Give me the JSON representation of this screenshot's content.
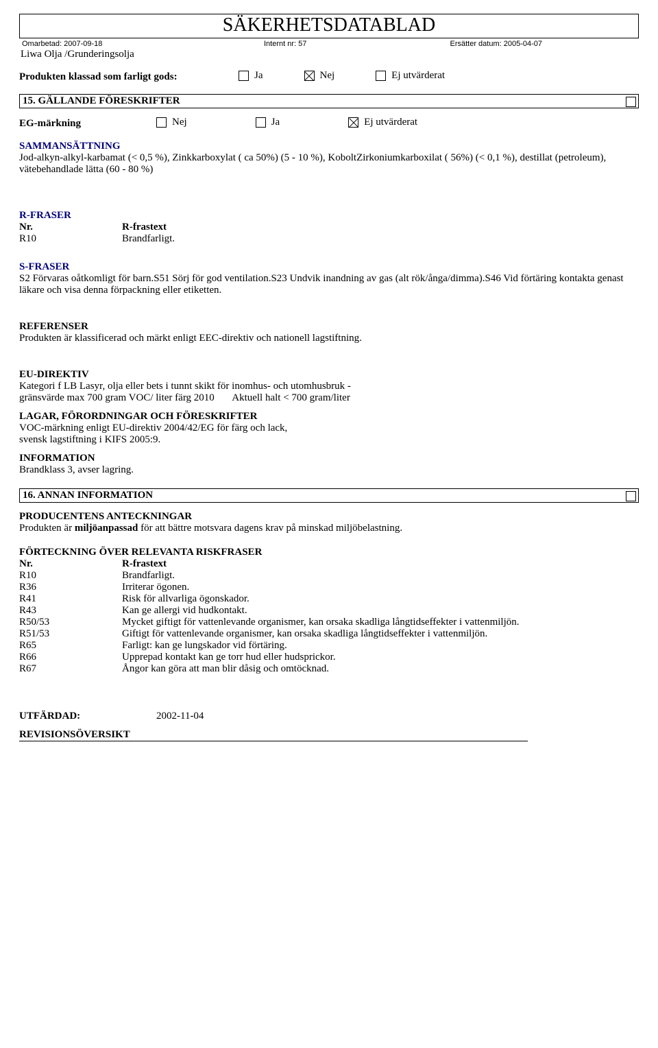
{
  "doc_title": "SÄKERHETSDATABLAD",
  "meta": {
    "left": "Omarbetad: 2007-09-18",
    "center": "Internt nr: 57",
    "right": "Ersätter datum: 2005-04-07"
  },
  "subtitle": "Liwa Olja /Grunderingsolja",
  "gods": {
    "label": "Produkten klassad som farligt gods:",
    "opts": [
      {
        "label": "Ja",
        "checked": false
      },
      {
        "label": "Nej",
        "checked": true
      },
      {
        "label": "Ej utvärderat",
        "checked": false
      }
    ]
  },
  "sec15": {
    "title": "15. GÄLLANDE FÖRESKRIFTER",
    "eg": {
      "label": "EG-märkning",
      "opts": [
        {
          "label": "Nej",
          "checked": false
        },
        {
          "label": "Ja",
          "checked": false
        },
        {
          "label": "Ej utvärderat",
          "checked": true
        }
      ]
    },
    "samman_h": "SAMMANSÄTTNING",
    "samman_txt": "Jod-alkyn-alkyl-karbamat (< 0,5 %), Zinkkarboxylat ( ca 50%) (5 - 10 %), KoboltZirkoniumkarboxilat ( 56%) (< 0,1 %), destillat (petroleum), vätebehandlade lätta (60 - 80 %)",
    "rfraser_h": "R-FRASER",
    "rfraser_cols": {
      "nr": "Nr.",
      "txt": "R-frastext"
    },
    "rfraser_row": {
      "nr": "R10",
      "txt": "Brandfarligt."
    },
    "sfraser_h": "S-FRASER",
    "sfraser_txt": "S2 Förvaras oåtkomligt för barn.S51 Sörj för god ventilation.S23 Undvik inandning av gas (alt rök/ånga/dimma).S46 Vid förtäring kontakta genast läkare och visa denna förpackning eller etiketten.",
    "ref_h": "REFERENSER",
    "ref_txt": "Produkten är klassificerad och märkt enligt EEC-direktiv och nationell lagstiftning.",
    "eu_h": "EU-DIREKTIV",
    "eu_l1": "Kategori f LB  Lasyr, olja eller bets i tunnt skikt för inomhus- och utomhusbruk -",
    "eu_l2_a": "gränsvärde max 700 gram VOC/ liter färg 2010",
    "eu_l2_b": "Aktuell halt  < 700 gram/liter",
    "lagar_h": "LAGAR, FÖRORDNINGAR OCH FÖRESKRIFTER",
    "lagar_l1": "VOC-märkning enligt EU-direktiv 2004/42/EG för färg och lack,",
    "lagar_l2": "svensk lagstiftning i KIFS 2005:9.",
    "info_h": "INFORMATION",
    "info_txt": "Brandklass 3, avser lagring."
  },
  "sec16": {
    "title": "16. ANNAN INFORMATION",
    "prod_h": "PRODUCENTENS ANTECKNINGAR",
    "prod_1": "Produkten är ",
    "prod_2": "miljöanpassad",
    "prod_3": " för att bättre motsvara dagens krav på minskad miljöbelastning.",
    "risk_h": "FÖRTECKNING ÖVER RELEVANTA RISKFRASER",
    "cols": {
      "nr": "Nr.",
      "txt": "R-frastext"
    },
    "rows": [
      {
        "nr": "R10",
        "txt": "Brandfarligt."
      },
      {
        "nr": "R36",
        "txt": "Irriterar ögonen."
      },
      {
        "nr": "R41",
        "txt": "Risk för allvarliga ögonskador."
      },
      {
        "nr": "R43",
        "txt": "Kan ge allergi vid hudkontakt."
      },
      {
        "nr": "R50/53",
        "txt": "Mycket giftigt för vattenlevande organismer, kan orsaka skadliga långtidseffekter i vattenmiljön."
      },
      {
        "nr": "R51/53",
        "txt": "Giftigt för vattenlevande organismer, kan orsaka skadliga långtidseffekter i vattenmiljön."
      },
      {
        "nr": "R65",
        "txt": "Farligt: kan ge lungskador vid förtäring."
      },
      {
        "nr": "R66",
        "txt": "Upprepad kontakt kan ge torr hud eller hudsprickor."
      },
      {
        "nr": "R67",
        "txt": "Ångor kan göra att man blir dåsig och omtöcknad."
      }
    ]
  },
  "utf_label": "UTFÄRDAD:",
  "utf_date": "2002-11-04",
  "rev_h": "REVISIONSÖVERSIKT"
}
